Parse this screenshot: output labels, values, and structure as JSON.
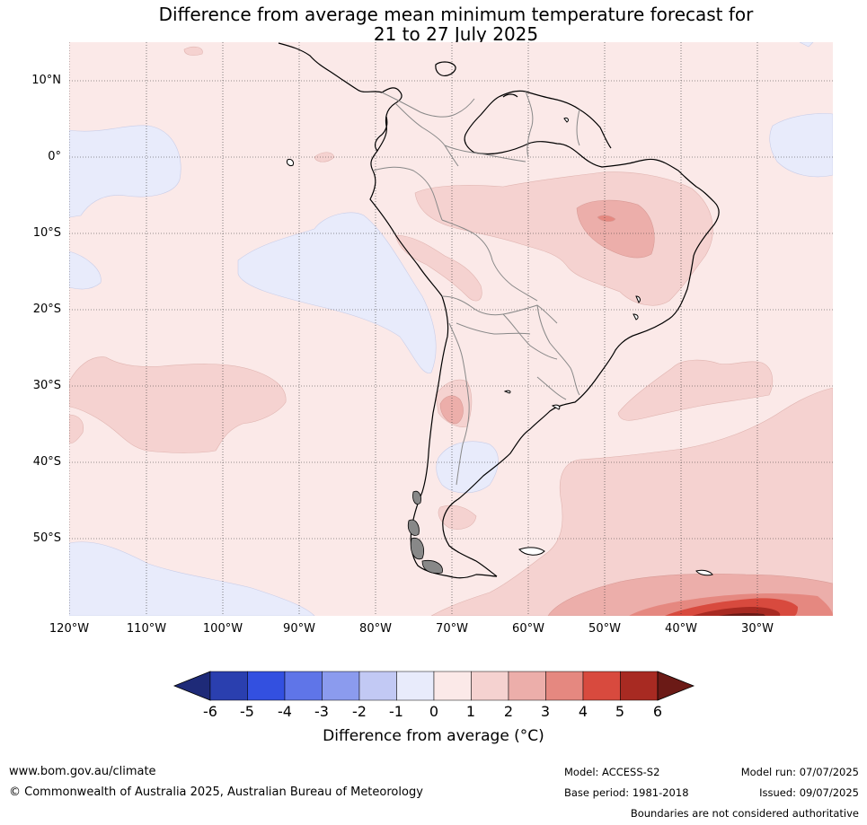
{
  "title": {
    "line1": "Difference from average mean minimum temperature forecast for",
    "line2": "21 to 27 July 2025"
  },
  "map": {
    "region": "South America",
    "lat_labels": [
      "10°N",
      "0°",
      "10°S",
      "20°S",
      "30°S",
      "40°S",
      "50°S"
    ],
    "lon_labels": [
      "120°W",
      "110°W",
      "100°W",
      "90°W",
      "80°W",
      "70°W",
      "60°W",
      "50°W",
      "40°W",
      "30°W"
    ],
    "background_color": "#fbe9e8"
  },
  "colorbar": {
    "title": "Difference from average (°C)",
    "ticks": [
      "-6",
      "-5",
      "-4",
      "-3",
      "-2",
      "-1",
      "0",
      "1",
      "2",
      "3",
      "4",
      "5",
      "6"
    ],
    "colors": [
      "#1e2a78",
      "#2a3faf",
      "#3350e0",
      "#5f75e8",
      "#8b9bee",
      "#c2c9f4",
      "#e8ebfb",
      "#fbe9e8",
      "#f5d2d0",
      "#ecaeaa",
      "#e58880",
      "#d84a3e",
      "#a82a22",
      "#6b1a16"
    ]
  },
  "footer": {
    "website": "www.bom.gov.au/climate",
    "copyright": "© Commonwealth of Australia 2025, Australian Bureau of Meteorology",
    "model": "Model: ACCESS-S2",
    "base_period": "Base period: 1981-2018",
    "model_run": "Model run: 07/07/2025",
    "issued": "Issued: 09/07/2025",
    "disclaimer": "Boundaries are not considered authoritative"
  }
}
